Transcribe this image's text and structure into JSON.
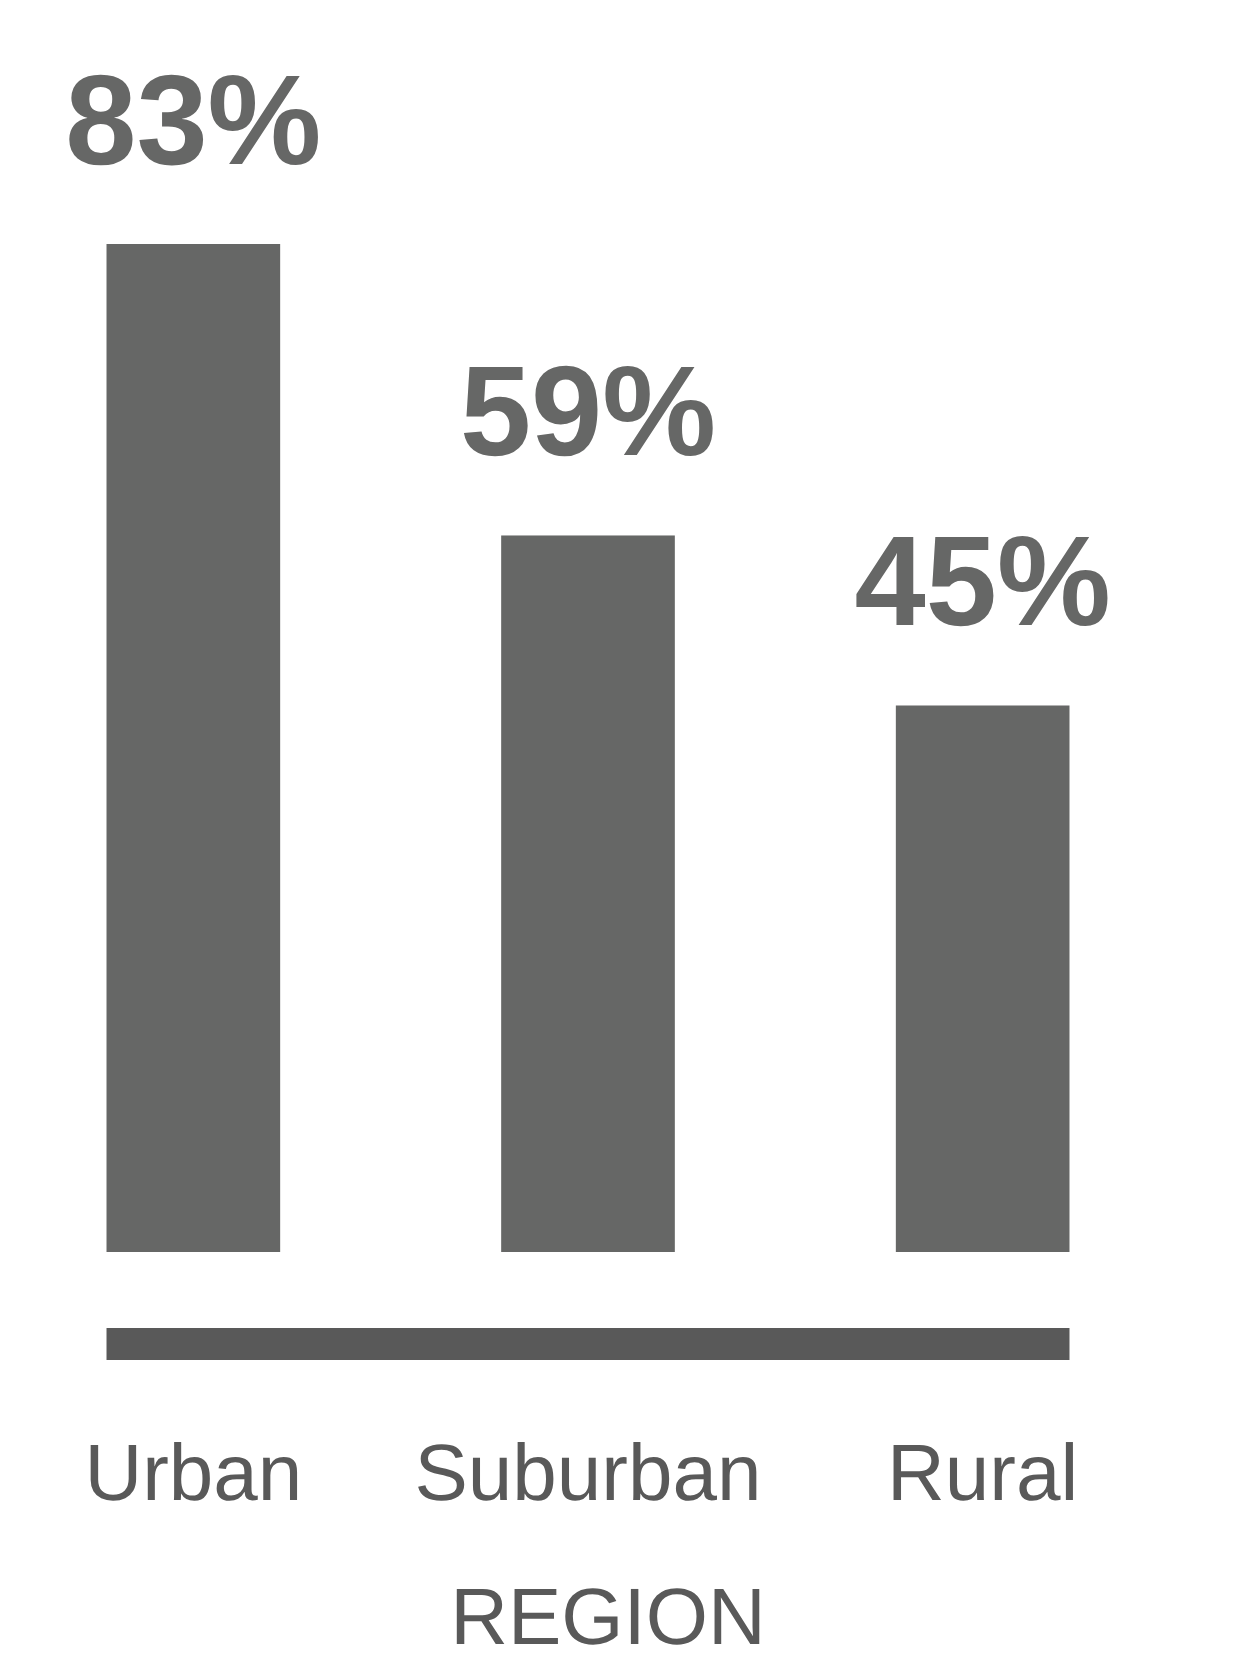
{
  "chart_data": {
    "type": "bar",
    "xlabel": "REGION",
    "categories": [
      "Urban",
      "Suburban",
      "Rural"
    ],
    "values": [
      83,
      59,
      45
    ],
    "value_labels": [
      "83%",
      "59%",
      "45%"
    ],
    "color": "#666766"
  }
}
